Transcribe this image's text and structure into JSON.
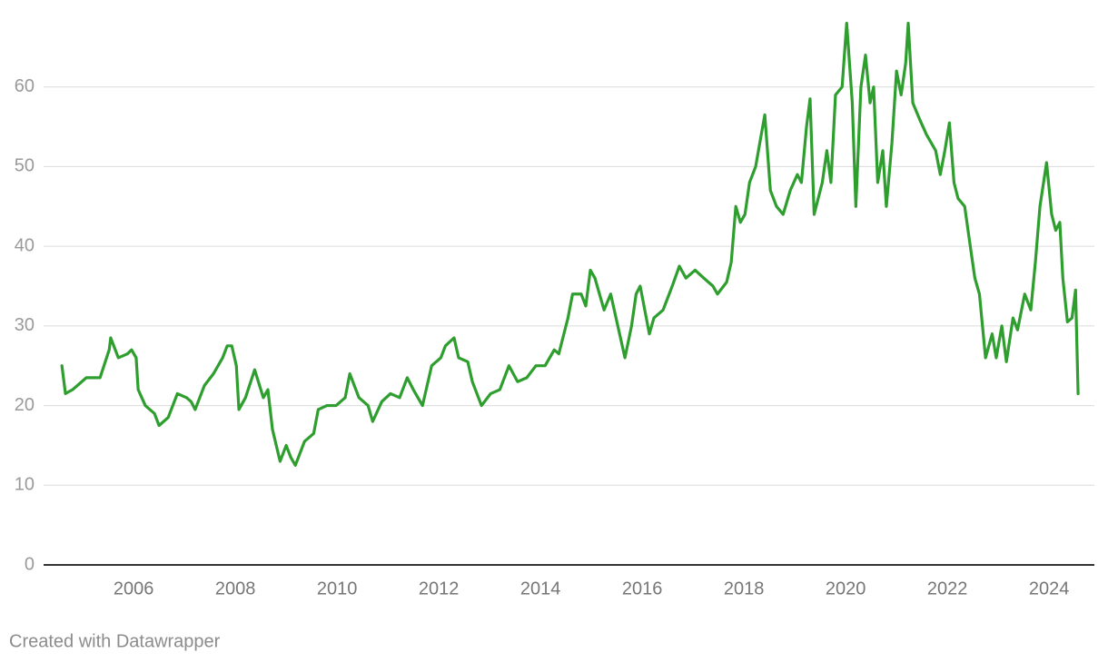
{
  "chart_data": {
    "type": "line",
    "credit": "Created with Datawrapper",
    "xlim": [
      2004.23,
      2024.89
    ],
    "xticks": [
      2006,
      2008,
      2010,
      2012,
      2014,
      2016,
      2018,
      2020,
      2022,
      2024
    ],
    "ylim": [
      0,
      70
    ],
    "yticks": [
      0,
      10,
      20,
      30,
      40,
      50,
      60
    ],
    "grid": true,
    "x": [
      2004.59,
      2004.66,
      2004.8,
      2005.07,
      2005.34,
      2005.52,
      2005.55,
      2005.7,
      2005.88,
      2005.96,
      2006.05,
      2006.09,
      2006.23,
      2006.41,
      2006.5,
      2006.68,
      2006.86,
      2007.04,
      2007.13,
      2007.21,
      2007.39,
      2007.57,
      2007.75,
      2007.84,
      2007.93,
      2008.02,
      2008.07,
      2008.2,
      2008.38,
      2008.55,
      2008.64,
      2008.73,
      2008.88,
      2009.0,
      2009.09,
      2009.18,
      2009.36,
      2009.54,
      2009.63,
      2009.8,
      2009.98,
      2010.16,
      2010.25,
      2010.43,
      2010.61,
      2010.7,
      2010.88,
      2011.05,
      2011.23,
      2011.38,
      2011.5,
      2011.68,
      2011.86,
      2012.04,
      2012.13,
      2012.3,
      2012.39,
      2012.57,
      2012.66,
      2012.84,
      2013.02,
      2013.2,
      2013.38,
      2013.55,
      2013.73,
      2013.91,
      2014.09,
      2014.27,
      2014.36,
      2014.54,
      2014.63,
      2014.8,
      2014.89,
      2014.98,
      2015.07,
      2015.16,
      2015.25,
      2015.38,
      2015.52,
      2015.66,
      2015.79,
      2015.88,
      2015.96,
      2016.05,
      2016.14,
      2016.23,
      2016.41,
      2016.59,
      2016.73,
      2016.86,
      2017.04,
      2017.21,
      2017.39,
      2017.48,
      2017.66,
      2017.75,
      2017.84,
      2017.93,
      2018.02,
      2018.11,
      2018.23,
      2018.34,
      2018.41,
      2018.52,
      2018.64,
      2018.77,
      2018.91,
      2019.05,
      2019.13,
      2019.23,
      2019.3,
      2019.38,
      2019.54,
      2019.63,
      2019.71,
      2019.8,
      2019.93,
      2020.02,
      2020.13,
      2020.2,
      2020.3,
      2020.39,
      2020.48,
      2020.55,
      2020.63,
      2020.73,
      2020.8,
      2020.91,
      2021.0,
      2021.09,
      2021.18,
      2021.23,
      2021.32,
      2021.45,
      2021.59,
      2021.77,
      2021.86,
      2021.95,
      2022.04,
      2022.13,
      2022.21,
      2022.34,
      2022.45,
      2022.54,
      2022.63,
      2022.75,
      2022.88,
      2022.96,
      2023.07,
      2023.16,
      2023.29,
      2023.38,
      2023.52,
      2023.64,
      2023.73,
      2023.82,
      2023.95,
      2024.05,
      2024.13,
      2024.21,
      2024.27,
      2024.36,
      2024.45,
      2024.52,
      2024.57
    ],
    "series": [
      {
        "color": "#2e9e2e",
        "values": [
          25,
          21.5,
          22,
          23.5,
          23.5,
          27,
          28.5,
          26,
          26.5,
          27,
          26,
          22,
          20,
          19,
          17.5,
          18.5,
          21.5,
          21,
          20.5,
          19.5,
          22.5,
          24,
          26,
          27.5,
          27.5,
          25,
          19.5,
          21,
          24.5,
          21,
          22,
          17,
          13,
          15,
          13.5,
          12.5,
          15.5,
          16.5,
          19.5,
          20,
          20,
          21,
          24,
          21,
          20,
          18,
          20.5,
          21.5,
          21,
          23.5,
          22,
          20,
          25,
          26,
          27.5,
          28.5,
          26,
          25.5,
          23,
          20,
          21.5,
          22,
          25,
          23,
          23.5,
          25,
          25,
          27,
          26.5,
          31,
          34,
          34,
          32.5,
          37,
          36,
          34,
          32,
          34,
          30,
          26,
          30,
          34,
          35,
          32,
          29,
          31,
          32,
          35,
          37.5,
          36,
          37,
          36,
          35,
          34,
          35.5,
          38,
          45,
          43,
          44,
          48,
          50,
          54,
          56.5,
          47,
          45,
          44,
          47,
          49,
          48,
          55,
          58.5,
          44,
          48,
          52,
          48,
          59,
          60,
          68,
          58,
          45,
          60,
          64,
          58,
          60,
          48,
          52,
          45,
          53,
          62,
          59,
          63,
          68,
          58,
          56,
          54,
          52,
          49,
          52,
          55.5,
          48,
          46,
          45,
          40,
          36,
          34,
          26,
          29,
          26,
          30,
          25.5,
          31,
          29.5,
          34,
          32,
          38,
          45,
          50.5,
          44,
          42,
          43,
          36,
          30.5,
          31,
          34.5,
          21.5
        ]
      }
    ]
  }
}
